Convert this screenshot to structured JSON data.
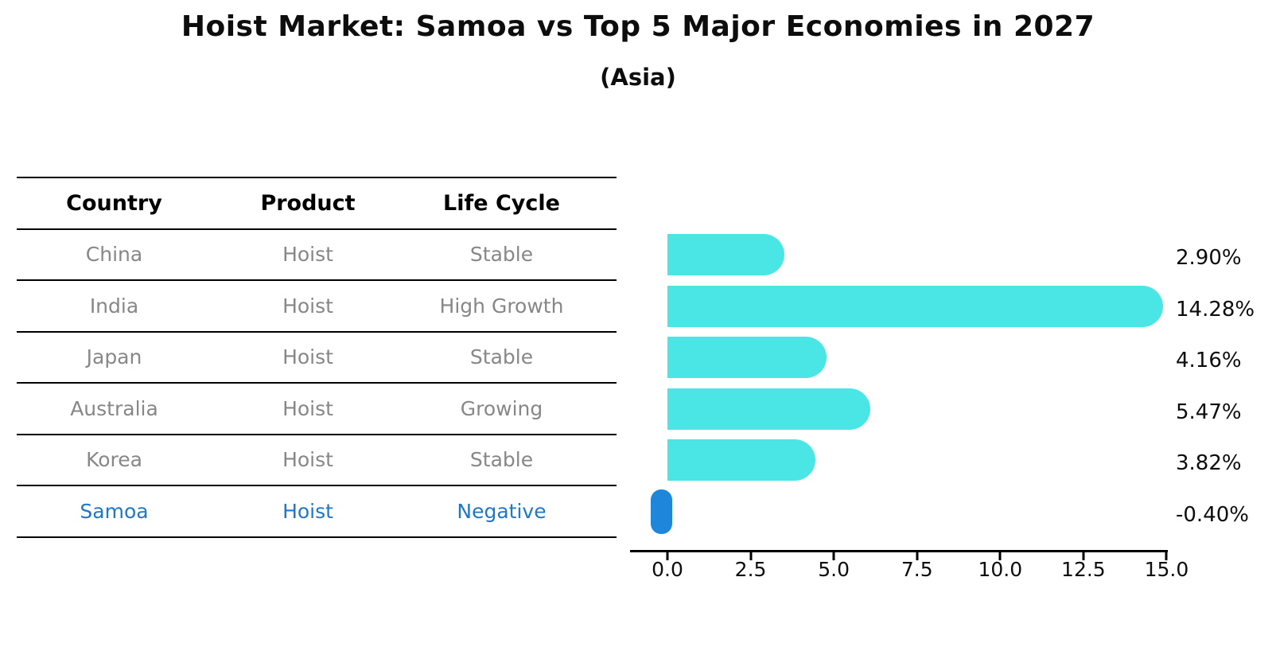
{
  "title": "Hoist Market: Samoa vs Top 5 Major Economies in 2027",
  "subtitle": "(Asia)",
  "table": {
    "headers": [
      "Country",
      "Product",
      "Life Cycle"
    ],
    "rows": [
      {
        "country": "China",
        "product": "Hoist",
        "life_cycle": "Stable",
        "highlight": false
      },
      {
        "country": "India",
        "product": "Hoist",
        "life_cycle": "High Growth",
        "highlight": false
      },
      {
        "country": "Japan",
        "product": "Hoist",
        "life_cycle": "Stable",
        "highlight": false
      },
      {
        "country": "Australia",
        "product": "Hoist",
        "life_cycle": "Growing",
        "highlight": false
      },
      {
        "country": "Korea",
        "product": "Hoist",
        "life_cycle": "Stable",
        "highlight": false
      },
      {
        "country": "Samoa",
        "product": "Hoist",
        "life_cycle": "Negative",
        "highlight": true
      }
    ]
  },
  "chart_data": {
    "type": "bar",
    "orientation": "horizontal",
    "title": "Hoist Market: Samoa vs Top 5 Major Economies in 2027 (Asia)",
    "categories": [
      "China",
      "India",
      "Japan",
      "Australia",
      "Korea",
      "Samoa"
    ],
    "values": [
      2.9,
      14.28,
      4.16,
      5.47,
      3.82,
      -0.4
    ],
    "value_labels": [
      "2.90%",
      "14.28%",
      "4.16%",
      "5.47%",
      "3.82%",
      "-0.40%"
    ],
    "xticks": [
      "0.0",
      "2.5",
      "5.0",
      "7.5",
      "10.0",
      "12.5",
      "15.0"
    ],
    "xlim": [
      -1.1,
      15.0
    ],
    "xlabel": "",
    "ylabel": "",
    "grid": false,
    "legend": false,
    "bar_color": "#4AE6E6",
    "highlight_bar_color": "#1E87DB",
    "highlight_text_color": "#1F77C8",
    "axis_color": "#000000",
    "table_text_color": "#878787"
  }
}
